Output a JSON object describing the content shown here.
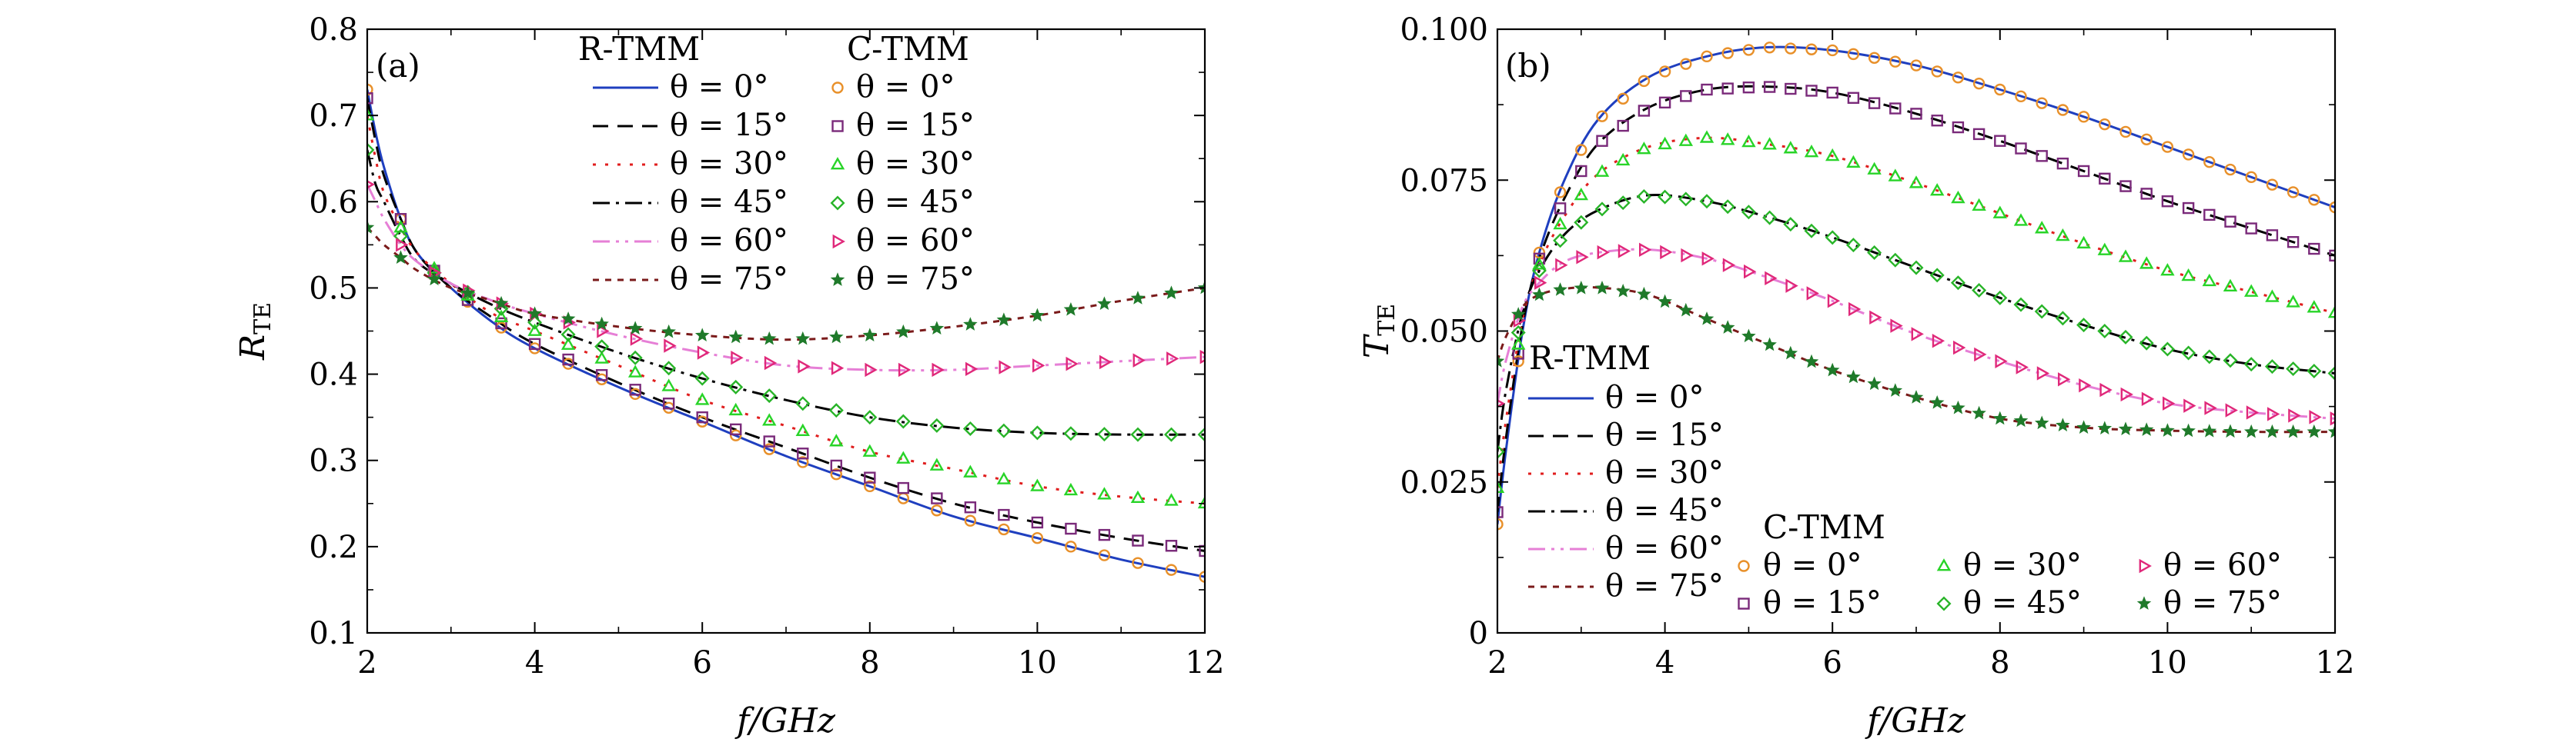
{
  "chart_data": [
    {
      "type": "line",
      "panel_label": "(a)",
      "xlabel": "f/GHz",
      "ylabel": "R",
      "ylabel_sub": "TE",
      "xlim": [
        2,
        12
      ],
      "ylim": [
        0.1,
        0.8
      ],
      "xticks": [
        2,
        4,
        6,
        8,
        10,
        12
      ],
      "xtick_labels": [
        "2",
        "4",
        "6",
        "8",
        "10",
        "12"
      ],
      "yticks": [
        0.1,
        0.2,
        0.3,
        0.4,
        0.5,
        0.6,
        0.7,
        0.8
      ],
      "ytick_labels": [
        "0.1",
        "0.2",
        "0.3",
        "0.4",
        "0.5",
        "0.6",
        "0.7",
        "0.8"
      ],
      "grid": false,
      "legend_placement": "top-right",
      "legend": {
        "line_title": "R-TMM",
        "marker_title": "C-TMM",
        "entries": [
          "θ = 0°",
          "θ = 15°",
          "θ = 30°",
          "θ = 45°",
          "θ = 60°",
          "θ = 75°"
        ]
      },
      "series": [
        {
          "angle": 0,
          "x": [
            2,
            2.1,
            2.2,
            2.4,
            2.6,
            3,
            3.5,
            4,
            5,
            6,
            7,
            8,
            9,
            10,
            11,
            12
          ],
          "y": [
            0.73,
            0.68,
            0.64,
            0.58,
            0.54,
            0.5,
            0.46,
            0.43,
            0.385,
            0.345,
            0.305,
            0.27,
            0.235,
            0.21,
            0.185,
            0.165
          ]
        },
        {
          "angle": 15,
          "x": [
            2,
            2.1,
            2.2,
            2.4,
            2.6,
            3,
            3.5,
            4,
            5,
            6,
            7,
            8,
            9,
            10,
            11,
            12
          ],
          "y": [
            0.72,
            0.67,
            0.63,
            0.58,
            0.54,
            0.5,
            0.465,
            0.435,
            0.39,
            0.35,
            0.315,
            0.28,
            0.25,
            0.228,
            0.21,
            0.195
          ]
        },
        {
          "angle": 30,
          "x": [
            2,
            2.1,
            2.2,
            2.4,
            2.6,
            3,
            3.5,
            4,
            5,
            6,
            7,
            8,
            9,
            10,
            11,
            12
          ],
          "y": [
            0.7,
            0.65,
            0.61,
            0.57,
            0.54,
            0.505,
            0.47,
            0.45,
            0.41,
            0.37,
            0.34,
            0.31,
            0.29,
            0.27,
            0.258,
            0.25
          ]
        },
        {
          "angle": 45,
          "x": [
            2,
            2.1,
            2.2,
            2.4,
            2.6,
            3,
            3.5,
            4,
            5,
            6,
            7,
            8,
            9,
            10,
            11,
            12
          ],
          "y": [
            0.66,
            0.62,
            0.6,
            0.56,
            0.53,
            0.505,
            0.48,
            0.46,
            0.425,
            0.395,
            0.37,
            0.35,
            0.338,
            0.332,
            0.33,
            0.33
          ]
        },
        {
          "angle": 60,
          "x": [
            2,
            2.1,
            2.2,
            2.4,
            2.6,
            3,
            3.5,
            4,
            5,
            6,
            7,
            8,
            9,
            10,
            11,
            12
          ],
          "y": [
            0.62,
            0.6,
            0.58,
            0.55,
            0.53,
            0.505,
            0.485,
            0.47,
            0.445,
            0.425,
            0.41,
            0.405,
            0.405,
            0.41,
            0.415,
            0.42
          ]
        },
        {
          "angle": 75,
          "x": [
            2,
            2.1,
            2.2,
            2.4,
            2.6,
            3,
            3.5,
            4,
            5,
            6,
            7,
            8,
            9,
            10,
            11,
            12
          ],
          "y": [
            0.57,
            0.56,
            0.55,
            0.535,
            0.52,
            0.5,
            0.485,
            0.47,
            0.455,
            0.445,
            0.44,
            0.445,
            0.455,
            0.468,
            0.485,
            0.5
          ]
        }
      ]
    },
    {
      "type": "line",
      "panel_label": "(b)",
      "xlabel": "f/GHz",
      "ylabel": "T",
      "ylabel_sub": "TE",
      "xlim": [
        2,
        12
      ],
      "ylim": [
        0,
        0.1
      ],
      "xticks": [
        2,
        4,
        6,
        8,
        10,
        12
      ],
      "xtick_labels": [
        "2",
        "4",
        "6",
        "8",
        "10",
        "12"
      ],
      "yticks": [
        0,
        0.025,
        0.05,
        0.075,
        0.1
      ],
      "ytick_labels": [
        "0",
        "0.025",
        "0.050",
        "0.075",
        "0.100"
      ],
      "grid": false,
      "legend_placement": "bottom-left",
      "legend": {
        "line_title": "R-TMM",
        "marker_title": "C-TMM",
        "entries": [
          "θ = 0°",
          "θ = 15°",
          "θ = 30°",
          "θ = 45°",
          "θ = 60°",
          "θ = 75°"
        ]
      },
      "series": [
        {
          "angle": 0,
          "x": [
            2,
            2.1,
            2.3,
            2.5,
            2.8,
            3.2,
            3.8,
            4.5,
            5.2,
            6,
            7,
            8,
            9,
            10,
            11,
            12
          ],
          "y": [
            0.018,
            0.03,
            0.05,
            0.063,
            0.075,
            0.085,
            0.092,
            0.0955,
            0.097,
            0.0965,
            0.094,
            0.09,
            0.0855,
            0.0805,
            0.0755,
            0.0705
          ]
        },
        {
          "angle": 15,
          "x": [
            2,
            2.1,
            2.3,
            2.5,
            2.8,
            3.2,
            3.8,
            4.5,
            5.2,
            6,
            7,
            8,
            9,
            10,
            11,
            12
          ],
          "y": [
            0.02,
            0.032,
            0.051,
            0.062,
            0.072,
            0.081,
            0.087,
            0.09,
            0.0905,
            0.0895,
            0.086,
            0.0815,
            0.0765,
            0.0715,
            0.067,
            0.0625
          ]
        },
        {
          "angle": 30,
          "x": [
            2,
            2.1,
            2.3,
            2.5,
            2.8,
            3.2,
            3.8,
            4.5,
            5.2,
            6,
            7,
            8,
            9,
            10,
            11,
            12
          ],
          "y": [
            0.024,
            0.035,
            0.052,
            0.061,
            0.069,
            0.076,
            0.0805,
            0.082,
            0.081,
            0.079,
            0.0745,
            0.0695,
            0.0645,
            0.06,
            0.0565,
            0.053
          ]
        },
        {
          "angle": 45,
          "x": [
            2,
            2.1,
            2.3,
            2.5,
            2.8,
            3.2,
            3.8,
            4.5,
            5.2,
            6,
            7,
            8,
            9,
            10,
            11,
            12
          ],
          "y": [
            0.03,
            0.04,
            0.053,
            0.06,
            0.066,
            0.07,
            0.0725,
            0.0715,
            0.069,
            0.0655,
            0.0605,
            0.0555,
            0.051,
            0.047,
            0.0445,
            0.043
          ]
        },
        {
          "angle": 60,
          "x": [
            2,
            2.1,
            2.3,
            2.5,
            2.8,
            3.2,
            3.8,
            4.5,
            5.2,
            6,
            7,
            8,
            9,
            10,
            11,
            12
          ],
          "y": [
            0.038,
            0.045,
            0.054,
            0.058,
            0.0615,
            0.063,
            0.0635,
            0.062,
            0.059,
            0.055,
            0.0495,
            0.045,
            0.041,
            0.038,
            0.0365,
            0.0355
          ]
        },
        {
          "angle": 75,
          "x": [
            2,
            2.1,
            2.3,
            2.5,
            2.8,
            3.2,
            3.8,
            4.5,
            5.2,
            6,
            7,
            8,
            9,
            10,
            11,
            12
          ],
          "y": [
            0.045,
            0.049,
            0.054,
            0.056,
            0.057,
            0.0572,
            0.056,
            0.052,
            0.048,
            0.0435,
            0.039,
            0.0355,
            0.034,
            0.0335,
            0.0333,
            0.0333
          ]
        }
      ]
    }
  ],
  "series_styles": [
    {
      "angle": 0,
      "color": "#1f3fbf",
      "dash": "",
      "marker": "circle",
      "marker_color": "#e8902a"
    },
    {
      "angle": 15,
      "color": "#000000",
      "dash": "20 12",
      "marker": "square",
      "marker_color": "#7a2a7a"
    },
    {
      "angle": 30,
      "color": "#e01e1e",
      "dash": "4 12",
      "marker": "triangle-up",
      "marker_color": "#28d428"
    },
    {
      "angle": 45,
      "color": "#000000",
      "dash": "22 8 4 8",
      "marker": "diamond",
      "marker_color": "#28b428"
    },
    {
      "angle": 60,
      "color": "#e67fd6",
      "dash": "22 8 4 8 4 8",
      "marker": "triangle-right",
      "marker_color": "#e0287a"
    },
    {
      "angle": 75,
      "color": "#7a1a1a",
      "dash": "8 8",
      "marker": "star",
      "marker_color": "#1f7a2a"
    }
  ]
}
